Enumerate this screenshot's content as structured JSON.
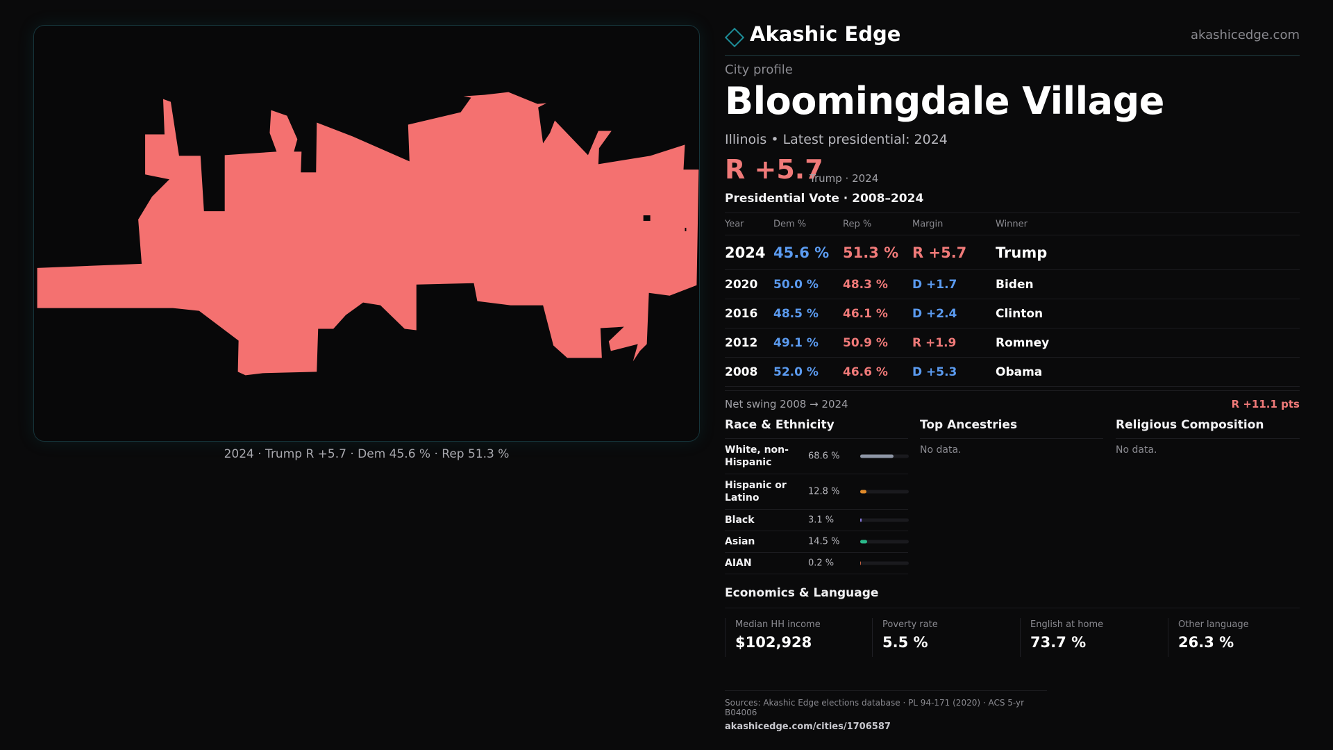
{
  "brand": {
    "name": "Akashic Edge",
    "url": "akashicedge.com"
  },
  "profile": {
    "kicker": "City profile",
    "city": "Bloomingdale Village",
    "subline": "Illinois • Latest presidential: 2024",
    "headline_margin": "R +5.7",
    "headline_note": "Trump · 2024"
  },
  "map": {
    "fill_color": "#f47170",
    "caption": "2024 · Trump  R +5.7 · Dem 45.6 % · Rep 51.3 %"
  },
  "votes": {
    "title": "Presidential Vote · 2008–2024",
    "columns": [
      "Year",
      "Dem %",
      "Rep %",
      "Margin",
      "Winner"
    ],
    "rows": [
      {
        "year": "2024",
        "dem": "45.6 %",
        "rep": "51.3 %",
        "margin": "R +5.7",
        "party": "rep",
        "winner": "Trump"
      },
      {
        "year": "2020",
        "dem": "50.0 %",
        "rep": "48.3 %",
        "margin": "D +1.7",
        "party": "dem",
        "winner": "Biden"
      },
      {
        "year": "2016",
        "dem": "48.5 %",
        "rep": "46.1 %",
        "margin": "D +2.4",
        "party": "dem",
        "winner": "Clinton"
      },
      {
        "year": "2012",
        "dem": "49.1 %",
        "rep": "50.9 %",
        "margin": "R +1.9",
        "party": "rep",
        "winner": "Romney"
      },
      {
        "year": "2008",
        "dem": "52.0 %",
        "rep": "46.6 %",
        "margin": "D +5.3",
        "party": "dem",
        "winner": "Obama"
      }
    ],
    "swing_label": "Net swing 2008 → 2024",
    "swing_value": "R +11.1 pts"
  },
  "race": {
    "title": "Race & Ethnicity",
    "rows": [
      {
        "label": "White, non-Hispanic",
        "pct": "68.6 %",
        "value": 68.6,
        "color": "#8e96a6"
      },
      {
        "label": "Hispanic or Latino",
        "pct": "12.8 %",
        "value": 12.8,
        "color": "#e08a2a"
      },
      {
        "label": "Black",
        "pct": "3.1 %",
        "value": 3.1,
        "color": "#8a7ae0"
      },
      {
        "label": "Asian",
        "pct": "14.5 %",
        "value": 14.5,
        "color": "#2bb98a"
      },
      {
        "label": "AIAN",
        "pct": "0.2 %",
        "value": 0.2,
        "color": "#c06040"
      }
    ]
  },
  "ancestries": {
    "title": "Top Ancestries",
    "empty": "No data."
  },
  "religion": {
    "title": "Religious Composition",
    "empty": "No data."
  },
  "economics": {
    "title": "Economics & Language",
    "cells": [
      {
        "label": "Median HH income",
        "value": "$102,928"
      },
      {
        "label": "Poverty rate",
        "value": "5.5 %"
      },
      {
        "label": "English at home",
        "value": "73.7 %"
      },
      {
        "label": "Other language",
        "value": "26.3 %"
      }
    ]
  },
  "sources": {
    "line": "Sources: Akashic Edge elections database · PL 94-171 (2020) · ACS 5-yr B04006",
    "url": "akashicedge.com/cities/1706587"
  }
}
